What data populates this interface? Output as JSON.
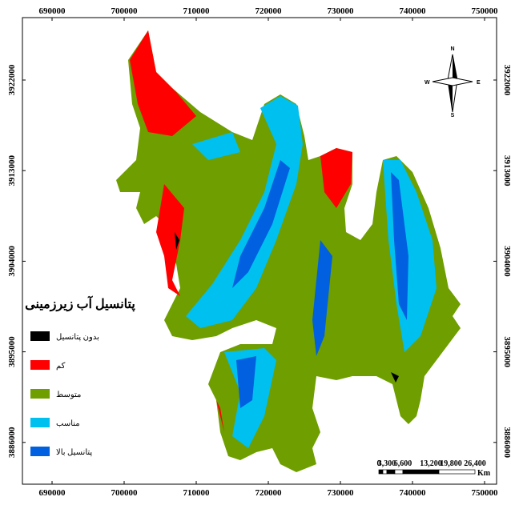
{
  "map": {
    "x_labels": [
      "690000",
      "700000",
      "710000",
      "720000",
      "730000",
      "740000",
      "750000"
    ],
    "y_labels": [
      "3922000",
      "3913000",
      "3904000",
      "3895000",
      "3886000"
    ],
    "legend": {
      "title": "پتانسیل آب زیرزمینی",
      "items": [
        {
          "label": "بدون پتانسیل",
          "color": "#000000"
        },
        {
          "label": "کم",
          "color": "#ff0000"
        },
        {
          "label": "متوسط",
          "color": "#6e9e00"
        },
        {
          "label": "مناسب",
          "color": "#00c0f0"
        },
        {
          "label": "پتانسیل بالا",
          "color": "#0060e0"
        }
      ]
    },
    "scale_bar": {
      "labels": [
        "0",
        "3,300",
        "6,600",
        "13,200",
        "19,800",
        "26,400"
      ],
      "unit": "Km"
    },
    "north_arrow": {
      "n": "N",
      "s": "S",
      "e": "E",
      "w": "W"
    }
  }
}
